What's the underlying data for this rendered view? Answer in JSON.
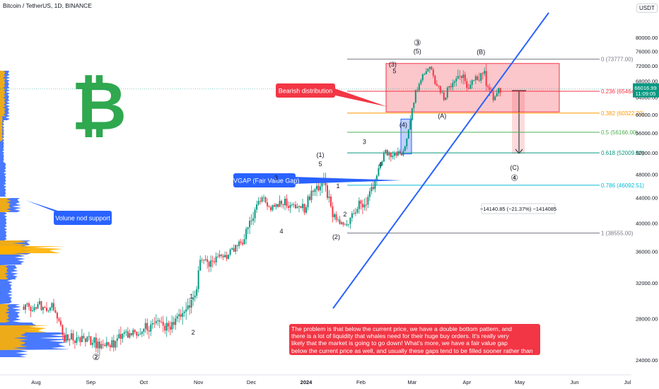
{
  "header": {
    "symbol": "Bitcoin / TetherUS, 1D, BINANCE",
    "currency": "USDT"
  },
  "price_axis": {
    "ticks": [
      "80000.00",
      "76000.00",
      "72000.00",
      "68000.00",
      "64000.00",
      "60000.00",
      "56000.00",
      "52000.00",
      "48000.00",
      "44000.00",
      "40000.00",
      "36000.00",
      "32000.00",
      "28000.00",
      "24000.00"
    ],
    "tick_values": [
      80000,
      76000,
      72000,
      68000,
      64000,
      60000,
      56000,
      52000,
      48000,
      44000,
      40000,
      36000,
      32000,
      28000,
      24000
    ],
    "current_price": "66016.99",
    "countdown": "11:09:05"
  },
  "time_axis": {
    "labels": [
      "Aug",
      "Sep",
      "Oct",
      "Nov",
      "Dec",
      "2024",
      "Feb",
      "Mar",
      "Apr",
      "May",
      "Jun",
      "Jul"
    ],
    "days": [
      -153,
      -122,
      -92,
      -61,
      -31,
      0,
      31,
      60,
      91,
      121,
      152,
      182
    ]
  },
  "fib_levels": [
    {
      "label": "0 (73777.00)",
      "value": 73777,
      "color": "#787b86"
    },
    {
      "label": "0.236 (65464.61)",
      "value": 65464.61,
      "color": "#f23645"
    },
    {
      "label": "0.382 (60322.20)",
      "value": 60322.2,
      "color": "#ff9800"
    },
    {
      "label": "0.5 (56166.00)",
      "value": 56166,
      "color": "#4caf50"
    },
    {
      "label": "0.618 (52009.80)",
      "value": 52009.8,
      "color": "#089981"
    },
    {
      "label": "0.786 (46092.51)",
      "value": 46092.51,
      "color": "#00bcd4"
    },
    {
      "label": "1 (38555.00)",
      "value": 38555,
      "color": "#787b86"
    }
  ],
  "annotations": {
    "bearish": "Bearish distribution",
    "fvgap": "FVGAP (Fair Value Gap)",
    "volume": "Volune nod support",
    "measure": "−14140.85 (−21.37%) −1414085",
    "note_lines": [
      "The problem is that below the current price, we have a double bottom pattern, and",
      "there is a lot of liquidity that whales need for their huge buy orders. It's really very",
      "likely that the market is going to go down! What's more, we have a fair value gap",
      "below the current price as well, and usually these gaps tend to be filled sooner rather than later."
    ]
  },
  "wave_labels": [
    {
      "text": "③",
      "day": 63,
      "price": 77600
    },
    {
      "text": "(5)",
      "day": 63,
      "price": 75400
    },
    {
      "text": "(B)",
      "day": 99,
      "price": 75200
    },
    {
      "text": "(3)",
      "day": 49,
      "price": 71800
    },
    {
      "text": "5",
      "day": 50,
      "price": 70000
    },
    {
      "text": "(A)",
      "day": 77,
      "price": 59200
    },
    {
      "text": "(4)",
      "day": 55,
      "price": 57300
    },
    {
      "text": "3",
      "day": 33,
      "price": 53800
    },
    {
      "text": "4",
      "day": 42,
      "price": 49400
    },
    {
      "text": "(1)",
      "day": 8,
      "price": 51200
    },
    {
      "text": "5",
      "day": 8,
      "price": 49500
    },
    {
      "text": "1",
      "day": 18,
      "price": 45600
    },
    {
      "text": "2",
      "day": 22,
      "price": 41000
    },
    {
      "text": "(2)",
      "day": 17,
      "price": 37700
    },
    {
      "text": "3",
      "day": -17,
      "price": 47000
    },
    {
      "text": "4",
      "day": -14,
      "price": 38500
    },
    {
      "text": "1",
      "day": -65,
      "price": 30200
    },
    {
      "text": "2",
      "day": -64,
      "price": 26400
    },
    {
      "text": "(C)",
      "day": 118,
      "price": 48800
    },
    {
      "text": "④",
      "day": 118,
      "price": 46900
    },
    {
      "text": "②",
      "day": -119,
      "price": 24000
    }
  ],
  "chart_data": {
    "type": "candlestick",
    "symbol": "Bitcoin / TetherUS",
    "interval": "1D",
    "ylim": [
      23000,
      82000
    ],
    "x_unit": "days from 2024-01-01",
    "closes": [
      {
        "day": -160,
        "price": 29300
      },
      {
        "day": -150,
        "price": 29200
      },
      {
        "day": -143,
        "price": 29400
      },
      {
        "day": -137,
        "price": 26000
      },
      {
        "day": -130,
        "price": 26000
      },
      {
        "day": -120,
        "price": 25800
      },
      {
        "day": -112,
        "price": 25100
      },
      {
        "day": -105,
        "price": 26500
      },
      {
        "day": -98,
        "price": 26300
      },
      {
        "day": -92,
        "price": 27000
      },
      {
        "day": -85,
        "price": 27600
      },
      {
        "day": -78,
        "price": 26900
      },
      {
        "day": -70,
        "price": 28400
      },
      {
        "day": -63,
        "price": 30000
      },
      {
        "day": -60,
        "price": 34500
      },
      {
        "day": -55,
        "price": 34600
      },
      {
        "day": -45,
        "price": 35400
      },
      {
        "day": -40,
        "price": 37000
      },
      {
        "day": -35,
        "price": 37800
      },
      {
        "day": -30,
        "price": 41500
      },
      {
        "day": -25,
        "price": 43800
      },
      {
        "day": -20,
        "price": 42200
      },
      {
        "day": -14,
        "price": 43600
      },
      {
        "day": -7,
        "price": 42600
      },
      {
        "day": -1,
        "price": 42300
      },
      {
        "day": 3,
        "price": 45000
      },
      {
        "day": 10,
        "price": 46600
      },
      {
        "day": 15,
        "price": 41000
      },
      {
        "day": 22,
        "price": 39500
      },
      {
        "day": 27,
        "price": 42000
      },
      {
        "day": 33,
        "price": 43000
      },
      {
        "day": 38,
        "price": 45500
      },
      {
        "day": 44,
        "price": 51800
      },
      {
        "day": 50,
        "price": 52200
      },
      {
        "day": 55,
        "price": 51500
      },
      {
        "day": 58,
        "price": 57000
      },
      {
        "day": 60,
        "price": 62000
      },
      {
        "day": 64,
        "price": 68300
      },
      {
        "day": 70,
        "price": 72100
      },
      {
        "day": 74,
        "price": 67500
      },
      {
        "day": 78,
        "price": 64000
      },
      {
        "day": 82,
        "price": 67800
      },
      {
        "day": 87,
        "price": 69700
      },
      {
        "day": 92,
        "price": 66000
      },
      {
        "day": 97,
        "price": 69100
      },
      {
        "day": 100,
        "price": 70500
      },
      {
        "day": 103,
        "price": 67000
      },
      {
        "day": 106,
        "price": 63500
      },
      {
        "day": 108,
        "price": 64500
      },
      {
        "day": 110,
        "price": 66017
      }
    ]
  },
  "colors": {
    "up": "#089981",
    "down": "#f23645",
    "up_volume": "#26a69a",
    "trendline": "#2962ff",
    "box_red": "#f23645",
    "box_blue": "#2962ff",
    "bitcoin": "#2fa84f",
    "profile_blue": "#2962ff",
    "profile_orange": "#ffb000"
  }
}
